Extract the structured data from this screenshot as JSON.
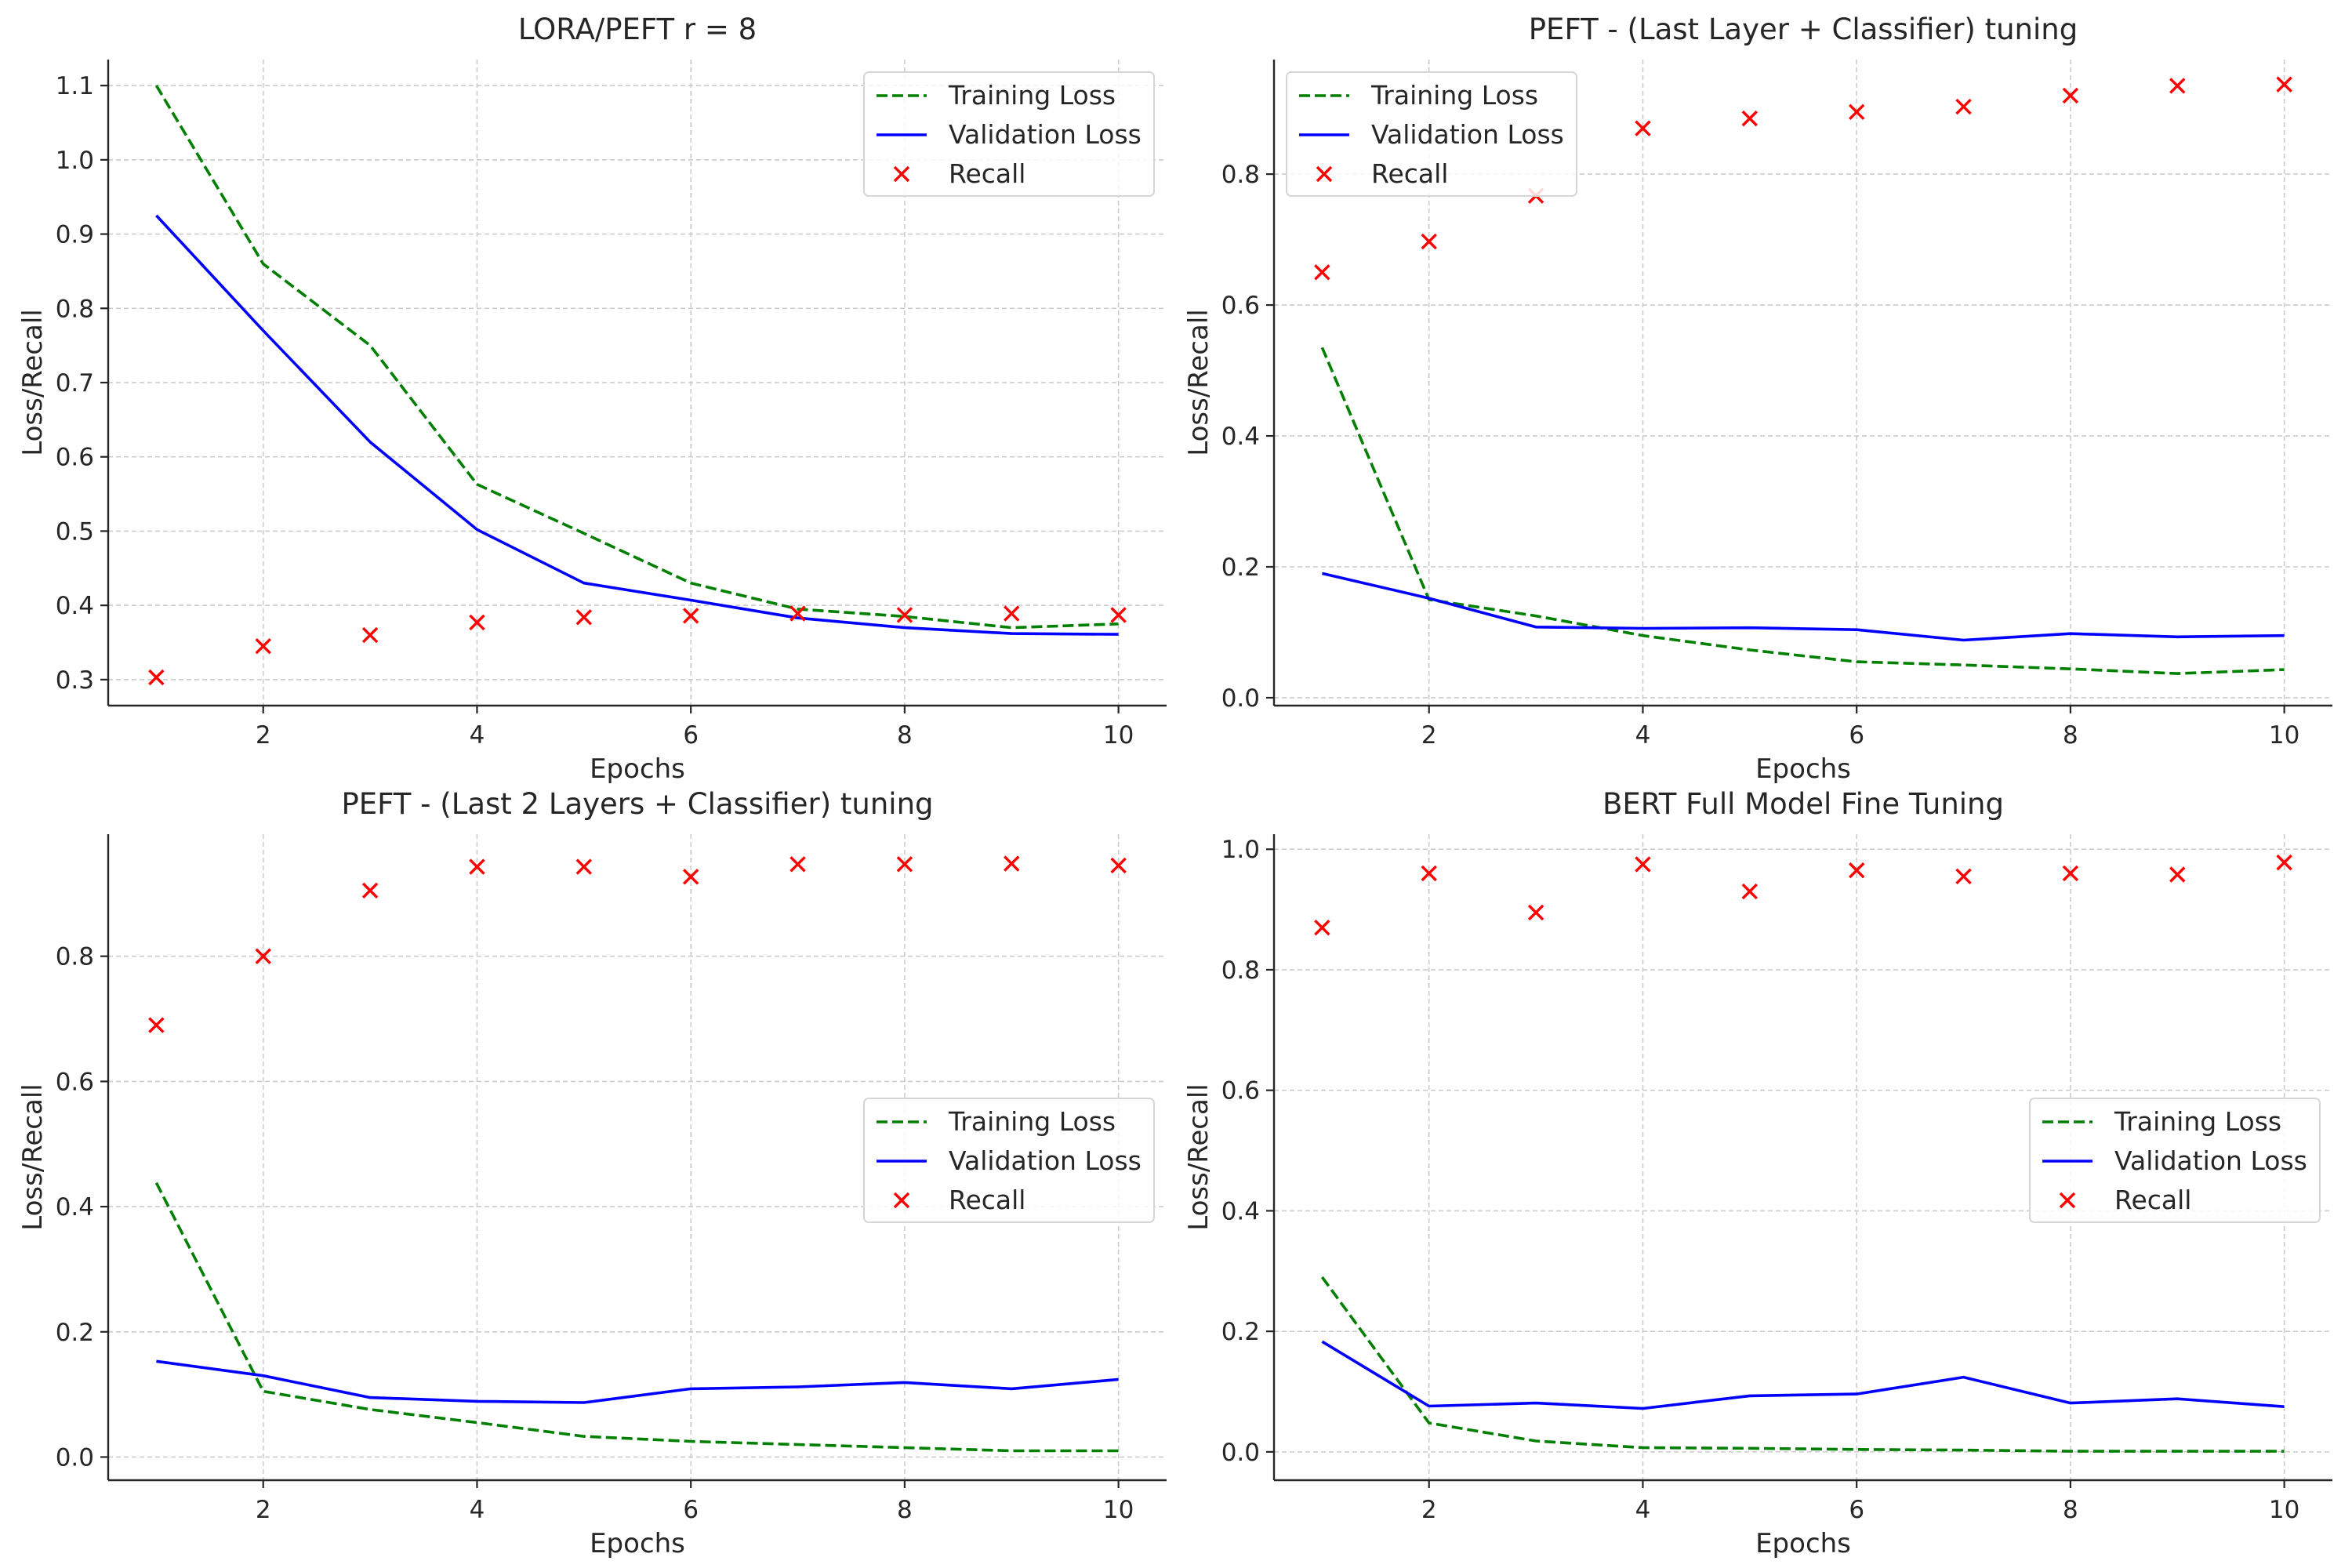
{
  "colors": {
    "training": "#007f00",
    "validation": "#0000ff",
    "recall": "#ff0000",
    "grid": "#cccccc",
    "axis": "#262626"
  },
  "chart_data": [
    {
      "type": "line",
      "title": "LORA/PEFT r = 8",
      "xlabel": "Epochs",
      "ylabel": "Loss/Recall",
      "xlim": [
        0.55,
        10.45
      ],
      "ylim": [
        0.265,
        1.135
      ],
      "xticks": [
        2,
        4,
        6,
        8,
        10
      ],
      "yticks": [
        0.3,
        0.4,
        0.5,
        0.6,
        0.7,
        0.8,
        0.9,
        1.0,
        1.1
      ],
      "ytick_labels": [
        "0.3",
        "0.4",
        "0.5",
        "0.6",
        "0.7",
        "0.8",
        "0.9",
        "1.0",
        "1.1"
      ],
      "grid": true,
      "legend_position": "top-right",
      "x": [
        1,
        2,
        3,
        4,
        5,
        6,
        7,
        8,
        9,
        10
      ],
      "series": [
        {
          "name": "Training Loss",
          "style": "dashed",
          "values": [
            1.1,
            0.86,
            0.75,
            0.563,
            0.497,
            0.43,
            0.395,
            0.385,
            0.37,
            0.375
          ]
        },
        {
          "name": "Validation Loss",
          "style": "solid",
          "values": [
            0.925,
            0.77,
            0.62,
            0.502,
            0.43,
            0.407,
            0.383,
            0.37,
            0.362,
            0.361
          ]
        },
        {
          "name": "Recall",
          "style": "marker-x",
          "values": [
            0.303,
            0.345,
            0.36,
            0.377,
            0.384,
            0.386,
            0.389,
            0.387,
            0.389,
            0.387
          ]
        }
      ]
    },
    {
      "type": "line",
      "title": "PEFT - (Last Layer + Classifier) tuning",
      "xlabel": "Epochs",
      "ylabel": "Loss/Recall",
      "xlim": [
        0.55,
        10.45
      ],
      "ylim": [
        -0.012,
        0.975
      ],
      "xticks": [
        2,
        4,
        6,
        8,
        10
      ],
      "yticks": [
        0.0,
        0.2,
        0.4,
        0.6,
        0.8
      ],
      "ytick_labels": [
        "0.0",
        "0.2",
        "0.4",
        "0.6",
        "0.8"
      ],
      "grid": true,
      "legend_position": "top-left",
      "x": [
        1,
        2,
        3,
        4,
        5,
        6,
        7,
        8,
        9,
        10
      ],
      "series": [
        {
          "name": "Training Loss",
          "style": "dashed",
          "values": [
            0.535,
            0.15,
            0.125,
            0.095,
            0.073,
            0.055,
            0.05,
            0.044,
            0.037,
            0.043
          ]
        },
        {
          "name": "Validation Loss",
          "style": "solid",
          "values": [
            0.19,
            0.152,
            0.108,
            0.106,
            0.107,
            0.104,
            0.088,
            0.098,
            0.093,
            0.095
          ]
        },
        {
          "name": "Recall",
          "style": "marker-x",
          "values": [
            0.65,
            0.697,
            0.767,
            0.87,
            0.885,
            0.895,
            0.903,
            0.92,
            0.935,
            0.937
          ]
        }
      ]
    },
    {
      "type": "line",
      "title": "PEFT - (Last 2 Layers + Classifier) tuning",
      "xlabel": "Epochs",
      "ylabel": "Loss/Recall",
      "xlim": [
        0.55,
        10.45
      ],
      "ylim": [
        -0.037,
        0.995
      ],
      "xticks": [
        2,
        4,
        6,
        8,
        10
      ],
      "yticks": [
        0.0,
        0.2,
        0.4,
        0.6,
        0.8
      ],
      "ytick_labels": [
        "0.0",
        "0.2",
        "0.4",
        "0.6",
        "0.8"
      ],
      "grid": true,
      "legend_position": "center-right",
      "x": [
        1,
        2,
        3,
        4,
        5,
        6,
        7,
        8,
        9,
        10
      ],
      "series": [
        {
          "name": "Training Loss",
          "style": "dashed",
          "values": [
            0.438,
            0.105,
            0.076,
            0.055,
            0.033,
            0.025,
            0.02,
            0.015,
            0.01,
            0.01
          ]
        },
        {
          "name": "Validation Loss",
          "style": "solid",
          "values": [
            0.153,
            0.13,
            0.095,
            0.089,
            0.087,
            0.109,
            0.112,
            0.119,
            0.109,
            0.124
          ]
        },
        {
          "name": "Recall",
          "style": "marker-x",
          "values": [
            0.69,
            0.8,
            0.905,
            0.943,
            0.943,
            0.927,
            0.947,
            0.947,
            0.948,
            0.945
          ]
        }
      ]
    },
    {
      "type": "line",
      "title": "BERT Full Model Fine Tuning",
      "xlabel": "Epochs",
      "ylabel": "Loss/Recall",
      "xlim": [
        0.55,
        10.45
      ],
      "ylim": [
        -0.047,
        1.025
      ],
      "xticks": [
        2,
        4,
        6,
        8,
        10
      ],
      "yticks": [
        0.0,
        0.2,
        0.4,
        0.6,
        0.8,
        1.0
      ],
      "ytick_labels": [
        "0.0",
        "0.2",
        "0.4",
        "0.6",
        "0.8",
        "1.0"
      ],
      "grid": true,
      "legend_position": "center-right",
      "x": [
        1,
        2,
        3,
        4,
        5,
        6,
        7,
        8,
        9,
        10
      ],
      "series": [
        {
          "name": "Training Loss",
          "style": "dashed",
          "values": [
            0.29,
            0.048,
            0.018,
            0.007,
            0.006,
            0.004,
            0.003,
            0.001,
            0.001,
            0.001
          ]
        },
        {
          "name": "Validation Loss",
          "style": "solid",
          "values": [
            0.183,
            0.076,
            0.081,
            0.072,
            0.093,
            0.096,
            0.124,
            0.081,
            0.088,
            0.075
          ]
        },
        {
          "name": "Recall",
          "style": "marker-x",
          "values": [
            0.87,
            0.96,
            0.895,
            0.975,
            0.93,
            0.965,
            0.955,
            0.96,
            0.958,
            0.978
          ]
        }
      ]
    }
  ]
}
